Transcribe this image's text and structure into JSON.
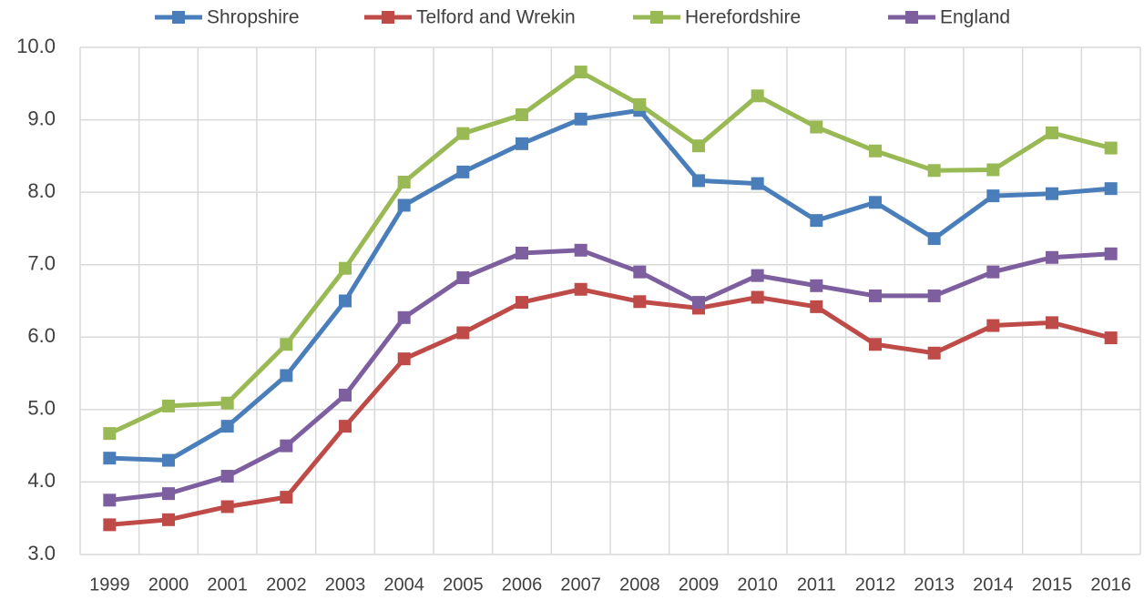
{
  "chart_data": {
    "type": "line",
    "categories": [
      "1999",
      "2000",
      "2001",
      "2002",
      "2003",
      "2004",
      "2005",
      "2006",
      "2007",
      "2008",
      "2009",
      "2010",
      "2011",
      "2012",
      "2013",
      "2014",
      "2015",
      "2016"
    ],
    "series": [
      {
        "name": "Shropshire",
        "color": "#4a7ebb",
        "values": [
          4.33,
          4.3,
          4.77,
          5.47,
          6.5,
          7.82,
          8.28,
          8.67,
          9.01,
          9.13,
          8.16,
          8.12,
          7.61,
          7.86,
          7.36,
          7.95,
          7.98,
          8.05
        ]
      },
      {
        "name": "Telford and Wrekin",
        "color": "#be4b48",
        "values": [
          3.41,
          3.48,
          3.66,
          3.79,
          4.77,
          5.7,
          6.06,
          6.48,
          6.66,
          6.49,
          6.4,
          6.55,
          6.42,
          5.9,
          5.78,
          6.16,
          6.2,
          5.99
        ]
      },
      {
        "name": "Herefordshire",
        "color": "#98b954",
        "values": [
          4.67,
          5.05,
          5.09,
          5.9,
          6.95,
          8.14,
          8.81,
          9.07,
          9.66,
          9.21,
          8.64,
          9.33,
          8.9,
          8.57,
          8.3,
          8.31,
          8.82,
          8.61
        ]
      },
      {
        "name": "England",
        "color": "#7d5fa0",
        "values": [
          3.75,
          3.84,
          4.08,
          4.5,
          5.2,
          6.27,
          6.82,
          7.16,
          7.2,
          6.9,
          6.48,
          6.85,
          6.71,
          6.57,
          6.57,
          6.9,
          7.1,
          7.15
        ]
      }
    ],
    "ylim": [
      3,
      10
    ],
    "yticks": [
      {
        "value": 3,
        "label": "3.0"
      },
      {
        "value": 4,
        "label": "4.0"
      },
      {
        "value": 5,
        "label": "5.0"
      },
      {
        "value": 6,
        "label": "6.0"
      },
      {
        "value": 7,
        "label": "7.0"
      },
      {
        "value": 8,
        "label": "8.0"
      },
      {
        "value": 9,
        "label": "9.0"
      },
      {
        "value": 10,
        "label": "10.0"
      }
    ],
    "grid": true,
    "legend": "top"
  }
}
